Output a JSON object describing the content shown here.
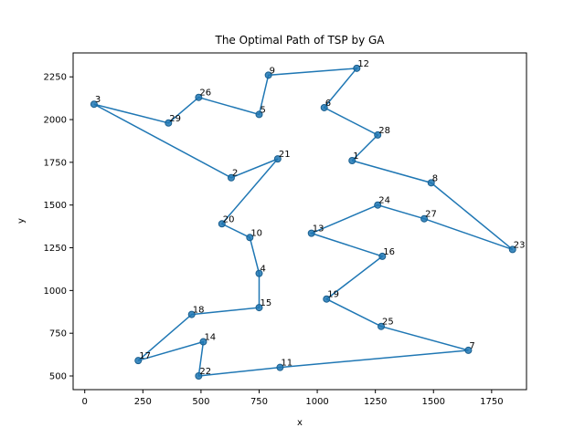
{
  "chart_data": {
    "type": "line",
    "title": "The Optimal Path of TSP by GA",
    "xlabel": "x",
    "ylabel": "y",
    "xlim": [
      -50,
      1900
    ],
    "ylim": [
      420,
      2390
    ],
    "xticks": [
      0,
      250,
      500,
      750,
      1000,
      1250,
      1500,
      1750
    ],
    "yticks": [
      500,
      750,
      1000,
      1250,
      1500,
      1750,
      2000,
      2250
    ],
    "grid": false,
    "line_color": "#1f77b4",
    "points": [
      {
        "label": "1",
        "x": 1150,
        "y": 1760
      },
      {
        "label": "8",
        "x": 1490,
        "y": 1630
      },
      {
        "label": "23",
        "x": 1840,
        "y": 1240
      },
      {
        "label": "27",
        "x": 1460,
        "y": 1420
      },
      {
        "label": "24",
        "x": 1260,
        "y": 1500
      },
      {
        "label": "13",
        "x": 975,
        "y": 1335
      },
      {
        "label": "16",
        "x": 1280,
        "y": 1200
      },
      {
        "label": "19",
        "x": 1040,
        "y": 950
      },
      {
        "label": "25",
        "x": 1275,
        "y": 790
      },
      {
        "label": "7",
        "x": 1650,
        "y": 650
      },
      {
        "label": "11",
        "x": 840,
        "y": 550
      },
      {
        "label": "22",
        "x": 490,
        "y": 500
      },
      {
        "label": "14",
        "x": 510,
        "y": 700
      },
      {
        "label": "17",
        "x": 230,
        "y": 590
      },
      {
        "label": "18",
        "x": 460,
        "y": 860
      },
      {
        "label": "15",
        "x": 750,
        "y": 900
      },
      {
        "label": "4",
        "x": 750,
        "y": 1100
      },
      {
        "label": "10",
        "x": 710,
        "y": 1310
      },
      {
        "label": "20",
        "x": 590,
        "y": 1390
      },
      {
        "label": "21",
        "x": 830,
        "y": 1770
      },
      {
        "label": "2",
        "x": 630,
        "y": 1660
      },
      {
        "label": "3",
        "x": 40,
        "y": 2090
      },
      {
        "label": "29",
        "x": 360,
        "y": 1980
      },
      {
        "label": "26",
        "x": 490,
        "y": 2130
      },
      {
        "label": "5",
        "x": 750,
        "y": 2030
      },
      {
        "label": "9",
        "x": 790,
        "y": 2260
      },
      {
        "label": "12",
        "x": 1170,
        "y": 2300
      },
      {
        "label": "6",
        "x": 1030,
        "y": 2070
      },
      {
        "label": "28",
        "x": 1260,
        "y": 1910
      },
      {
        "label": "1",
        "x": 1150,
        "y": 1760
      }
    ]
  }
}
